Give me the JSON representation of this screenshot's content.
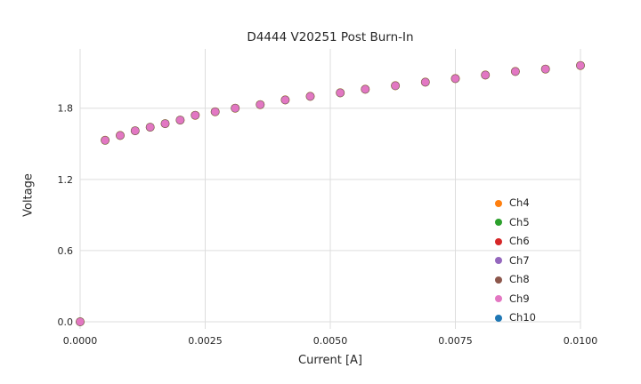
{
  "chart_data": {
    "type": "scatter",
    "title": "D4444 V20251 Post Burn-In",
    "xlabel": "Current [A]",
    "ylabel": "Voltage",
    "xlim": [
      0,
      0.01
    ],
    "ylim": [
      -0.06,
      2.3
    ],
    "grid": true,
    "legend_position": "lower right",
    "xticks": [
      {
        "v": 0.0,
        "label": "0.0000"
      },
      {
        "v": 0.0025,
        "label": "0.0025"
      },
      {
        "v": 0.005,
        "label": "0.0050"
      },
      {
        "v": 0.0075,
        "label": "0.0075"
      },
      {
        "v": 0.01,
        "label": "0.0100"
      }
    ],
    "yticks": [
      {
        "v": 0.0,
        "label": "0.0"
      },
      {
        "v": 0.6,
        "label": "0.6"
      },
      {
        "v": 1.2,
        "label": "1.2"
      },
      {
        "v": 1.8,
        "label": "1.8"
      }
    ],
    "x": [
      0.0,
      0.0005,
      0.0008,
      0.0011,
      0.0014,
      0.0017,
      0.002,
      0.0023,
      0.0027,
      0.0031,
      0.0036,
      0.0041,
      0.0046,
      0.0052,
      0.0057,
      0.0063,
      0.0069,
      0.0075,
      0.0081,
      0.0087,
      0.0093,
      0.01
    ],
    "series": [
      {
        "name": "Ch4",
        "color": "#ff7f0e",
        "values": [
          0.0,
          1.53,
          1.57,
          1.61,
          1.64,
          1.67,
          1.7,
          1.74,
          1.77,
          1.8,
          1.83,
          1.87,
          1.9,
          1.93,
          1.96,
          1.99,
          2.02,
          2.05,
          2.08,
          2.11,
          2.13,
          2.16
        ]
      },
      {
        "name": "Ch5",
        "color": "#2ca02c",
        "values": [
          0.0,
          1.53,
          1.57,
          1.61,
          1.64,
          1.67,
          1.7,
          1.74,
          1.77,
          1.8,
          1.83,
          1.87,
          1.9,
          1.93,
          1.96,
          1.99,
          2.02,
          2.05,
          2.08,
          2.11,
          2.13,
          2.16
        ]
      },
      {
        "name": "Ch6",
        "color": "#d62728",
        "values": [
          0.0,
          1.53,
          1.57,
          1.61,
          1.64,
          1.67,
          1.7,
          1.74,
          1.77,
          1.8,
          1.83,
          1.87,
          1.9,
          1.93,
          1.96,
          1.99,
          2.02,
          2.05,
          2.08,
          2.11,
          2.13,
          2.16
        ]
      },
      {
        "name": "Ch7",
        "color": "#9467bd",
        "values": [
          0.0,
          1.53,
          1.57,
          1.61,
          1.64,
          1.67,
          1.7,
          1.74,
          1.77,
          1.8,
          1.83,
          1.87,
          1.9,
          1.93,
          1.96,
          1.99,
          2.02,
          2.05,
          2.08,
          2.11,
          2.13,
          2.16
        ]
      },
      {
        "name": "Ch8",
        "color": "#8c564b",
        "values": [
          0.0,
          1.53,
          1.57,
          1.61,
          1.64,
          1.67,
          1.7,
          1.74,
          1.77,
          1.8,
          1.83,
          1.87,
          1.9,
          1.93,
          1.96,
          1.99,
          2.02,
          2.05,
          2.08,
          2.11,
          2.13,
          2.16
        ]
      },
      {
        "name": "Ch9",
        "color": "#e377c2",
        "values": [
          0.0,
          1.53,
          1.57,
          1.61,
          1.64,
          1.67,
          1.7,
          1.74,
          1.77,
          1.8,
          1.83,
          1.87,
          1.9,
          1.93,
          1.96,
          1.99,
          2.02,
          2.05,
          2.08,
          2.11,
          2.13,
          2.16
        ]
      },
      {
        "name": "Ch10",
        "color": "#1f77b4",
        "values": [
          0.0,
          1.53,
          1.57,
          1.61,
          1.64,
          1.67,
          1.7,
          1.74,
          1.77,
          1.8,
          1.83,
          1.87,
          1.9,
          1.93,
          1.96,
          1.99,
          2.02,
          2.05,
          2.08,
          2.11,
          2.13,
          2.16
        ]
      }
    ],
    "draw_order": [
      0,
      1,
      2,
      6,
      4,
      3,
      5
    ]
  }
}
